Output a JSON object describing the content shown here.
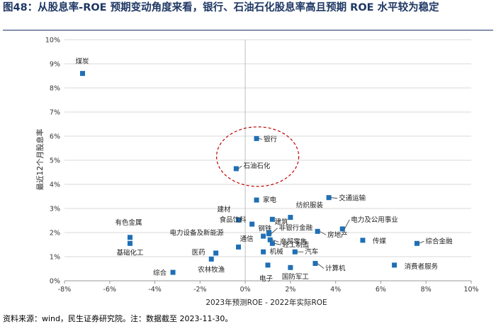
{
  "title": "图48：从股息率-ROE 预期变动角度来看，银行、石油石化股息率高且预期 ROE 水平较为稳定",
  "footer": "资料来源：wind，民生证券研究院。注：数据截至 2023-11-30。",
  "chart_data": {
    "type": "scatter",
    "xlabel": "2023年预测ROE - 2022年实际ROE",
    "ylabel": "最近12个月股息率",
    "xlim": [
      -8,
      10
    ],
    "ylim": [
      0,
      10
    ],
    "x_ticks": [
      "-8%",
      "-6%",
      "-4%",
      "-2%",
      "0%",
      "2%",
      "4%",
      "6%",
      "8%",
      "10%"
    ],
    "y_ticks": [
      "0%",
      "1%",
      "2%",
      "3%",
      "4%",
      "5%",
      "6%",
      "7%",
      "8%",
      "9%",
      "10%"
    ],
    "grid": true,
    "point_color": "#1f6fb5",
    "highlight_color": "#c00000",
    "points": [
      {
        "label": "煤炭",
        "x": -7.2,
        "y": 8.6
      },
      {
        "label": "银行",
        "x": 0.5,
        "y": 5.9
      },
      {
        "label": "石油石化",
        "x": -0.4,
        "y": 4.65
      },
      {
        "label": "家电",
        "x": 0.5,
        "y": 3.35
      },
      {
        "label": "交通运输",
        "x": 3.7,
        "y": 3.45
      },
      {
        "label": "建材",
        "x": -0.3,
        "y": 2.52
      },
      {
        "label": "食品饮料",
        "x": 0.3,
        "y": 2.35
      },
      {
        "label": "钢铁",
        "x": 1.2,
        "y": 2.55
      },
      {
        "label": "纺织服装",
        "x": 2.0,
        "y": 2.63
      },
      {
        "label": "建筑",
        "x": 1.05,
        "y": 2.0
      },
      {
        "label": "非银行金融",
        "x": 1.05,
        "y": 1.95
      },
      {
        "label": "通信",
        "x": 0.8,
        "y": 1.85
      },
      {
        "label": "商贸零售",
        "x": 1.1,
        "y": 1.7
      },
      {
        "label": "轻工制造",
        "x": 1.2,
        "y": 1.55
      },
      {
        "label": "房地产",
        "x": 3.2,
        "y": 2.05
      },
      {
        "label": "电力及公用事业",
        "x": 4.3,
        "y": 2.15
      },
      {
        "label": "传媒",
        "x": 5.2,
        "y": 1.68
      },
      {
        "label": "综合金融",
        "x": 7.6,
        "y": 1.55
      },
      {
        "label": "有色金属",
        "x": -5.1,
        "y": 1.8
      },
      {
        "label": "基础化工",
        "x": -5.1,
        "y": 1.55
      },
      {
        "label": "电力设备及新能源",
        "x": -0.3,
        "y": 1.4
      },
      {
        "label": "医药",
        "x": -1.3,
        "y": 1.15
      },
      {
        "label": "机械",
        "x": 0.8,
        "y": 1.2
      },
      {
        "label": "汽车",
        "x": 2.2,
        "y": 1.2
      },
      {
        "label": "电子",
        "x": 1.0,
        "y": 0.65
      },
      {
        "label": "国防军工",
        "x": 2.0,
        "y": 0.55
      },
      {
        "label": "计算机",
        "x": 3.1,
        "y": 0.72
      },
      {
        "label": "消费者服务",
        "x": 6.6,
        "y": 0.65
      },
      {
        "label": "农林牧渔",
        "x": -1.5,
        "y": 0.9
      },
      {
        "label": "综合",
        "x": -3.2,
        "y": 0.35
      }
    ]
  }
}
